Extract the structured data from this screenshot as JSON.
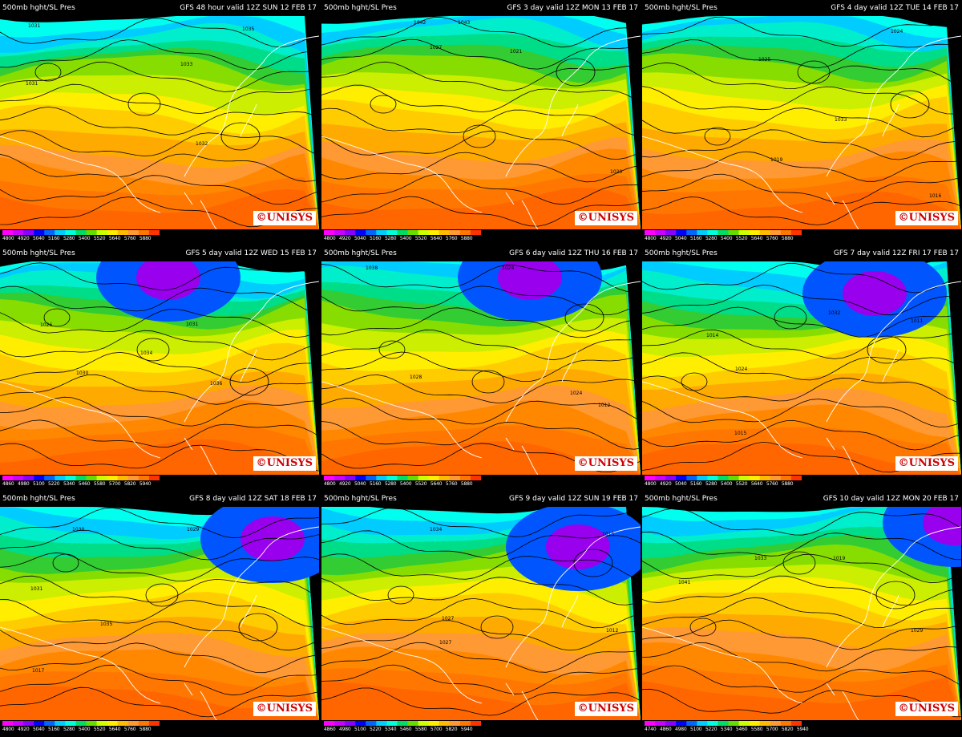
{
  "logo_text": "UNISYS",
  "logo_symbol": "©",
  "colors": {
    "colorbar": [
      "#ff00ff",
      "#cc00ff",
      "#8800ff",
      "#0000ff",
      "#0066ff",
      "#00ccff",
      "#00ffdd",
      "#00dd66",
      "#66dd00",
      "#ccff00",
      "#ffee00",
      "#ffbb00",
      "#ff9933",
      "#ff7700",
      "#ff3300"
    ],
    "contour": "#000000",
    "coastline": "#ffffff"
  },
  "panels": [
    {
      "title_left": "500mb hght/SL Pres",
      "title_right": "GFS 48 hour valid 12Z SUN 12 FEB 17",
      "ticks": [
        "4800",
        "4920",
        "5040",
        "5160",
        "5280",
        "5400",
        "5520",
        "5640",
        "5760",
        "5880"
      ],
      "labels": [
        {
          "t": "1031"
        },
        {
          "t": "1033"
        },
        {
          "t": "1035"
        },
        {
          "t": "1032"
        },
        {
          "t": "1031"
        }
      ]
    },
    {
      "title_left": "500mb hght/SL Pres",
      "title_right": "GFS 3 day valid 12Z MON 13 FEB 17",
      "ticks": [
        "4800",
        "4920",
        "5040",
        "5160",
        "5280",
        "5400",
        "5520",
        "5640",
        "5760",
        "5880"
      ],
      "labels": [
        {
          "t": "1042"
        },
        {
          "t": "1043"
        },
        {
          "t": "1027"
        },
        {
          "t": "1021"
        },
        {
          "t": "1020"
        }
      ]
    },
    {
      "title_left": "500mb hght/SL Pres",
      "title_right": "GFS 4 day valid 12Z TUE 14 FEB 17",
      "ticks": [
        "4800",
        "4920",
        "5040",
        "5160",
        "5280",
        "5400",
        "5520",
        "5640",
        "5760",
        "5880"
      ],
      "labels": [
        {
          "t": "1025"
        },
        {
          "t": "1024"
        },
        {
          "t": "1033"
        },
        {
          "t": "1019"
        },
        {
          "t": "1016"
        }
      ]
    },
    {
      "title_left": "500mb hght/SL Pres",
      "title_right": "GFS 5 day valid 12Z WED 15 FEB 17",
      "ticks": [
        "4860",
        "4980",
        "5100",
        "5220",
        "5340",
        "5460",
        "5580",
        "5700",
        "5820",
        "5940"
      ],
      "labels": [
        {
          "t": "1026"
        },
        {
          "t": "1031"
        },
        {
          "t": "1030"
        },
        {
          "t": "1034"
        },
        {
          "t": "1036"
        }
      ]
    },
    {
      "title_left": "500mb hght/SL Pres",
      "title_right": "GFS 6 day valid 12Z THU 16 FEB 17",
      "ticks": [
        "4800",
        "4920",
        "5040",
        "5160",
        "5280",
        "5400",
        "5520",
        "5640",
        "5760",
        "5880"
      ],
      "labels": [
        {
          "t": "1038"
        },
        {
          "t": "1024"
        },
        {
          "t": "1028"
        },
        {
          "t": "1024"
        },
        {
          "t": "1012"
        }
      ]
    },
    {
      "title_left": "500mb hght/SL Pres",
      "title_right": "GFS 7 day valid 12Z FRI 17 FEB 17",
      "ticks": [
        "4800",
        "4920",
        "5040",
        "5160",
        "5280",
        "5400",
        "5520",
        "5640",
        "5760",
        "5880"
      ],
      "labels": [
        {
          "t": "1014"
        },
        {
          "t": "1024"
        },
        {
          "t": "1015"
        },
        {
          "t": "1032"
        },
        {
          "t": "1011"
        }
      ]
    },
    {
      "title_left": "500mb hght/SL Pres",
      "title_right": "GFS 8 day valid 12Z SAT 18 FEB 17",
      "ticks": [
        "4800",
        "4920",
        "5040",
        "5160",
        "5280",
        "5400",
        "5520",
        "5640",
        "5760",
        "5880"
      ],
      "labels": [
        {
          "t": "1030"
        },
        {
          "t": "1029"
        },
        {
          "t": "1031"
        },
        {
          "t": "1035"
        },
        {
          "t": "1017"
        }
      ]
    },
    {
      "title_left": "500mb hght/SL Pres",
      "title_right": "GFS 9 day valid 12Z SUN 19 FEB 17",
      "ticks": [
        "4860",
        "4980",
        "5100",
        "5220",
        "5340",
        "5460",
        "5580",
        "5700",
        "5820",
        "5940"
      ],
      "labels": [
        {
          "t": "1034"
        },
        {
          "t": "1027"
        },
        {
          "t": "1027"
        },
        {
          "t": "1012"
        },
        {
          "t": "1015"
        }
      ]
    },
    {
      "title_left": "500mb hght/SL Pres",
      "title_right": "GFS 10 day valid 12Z MON 20 FEB 17",
      "ticks": [
        "4740",
        "4860",
        "4980",
        "5100",
        "5220",
        "5340",
        "5460",
        "5580",
        "5700",
        "5820",
        "5940"
      ],
      "labels": [
        {
          "t": "1041"
        },
        {
          "t": "1033"
        },
        {
          "t": "1029"
        },
        {
          "t": "1019"
        }
      ]
    }
  ]
}
